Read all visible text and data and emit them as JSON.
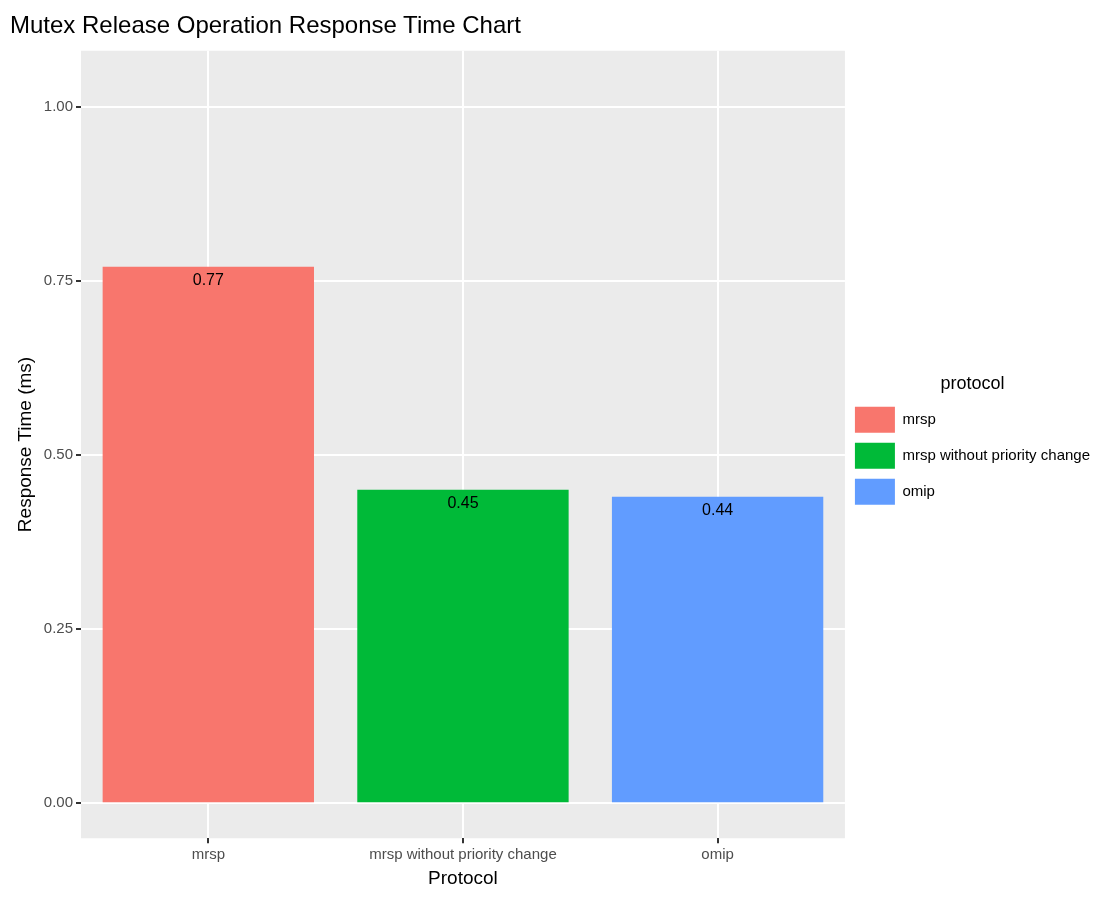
{
  "chart_data": {
    "type": "bar",
    "title": "Mutex Release Operation Response Time Chart",
    "xlabel": "Protocol",
    "ylabel": "Response Time (ms)",
    "legend_title": "protocol",
    "categories": [
      "mrsp",
      "mrsp without priority change",
      "omip"
    ],
    "series": [
      {
        "name": "mrsp",
        "color": "#f8766d",
        "values": [
          0.77,
          null,
          null
        ]
      },
      {
        "name": "mrsp without priority change",
        "color": "#00ba38",
        "values": [
          null,
          0.45,
          null
        ]
      },
      {
        "name": "omip",
        "color": "#619cff",
        "values": [
          null,
          null,
          0.44
        ]
      }
    ],
    "ylim": [
      -0.05,
      1.08
    ],
    "yticks": [
      {
        "value": 0,
        "label": "0.00"
      },
      {
        "value": 0.25,
        "label": "0.25"
      },
      {
        "value": 0.5,
        "label": "0.50"
      },
      {
        "value": 0.75,
        "label": "0.75"
      },
      {
        "value": 1,
        "label": "1.00"
      }
    ],
    "grid": true,
    "legend": "right",
    "data_labels": true
  }
}
